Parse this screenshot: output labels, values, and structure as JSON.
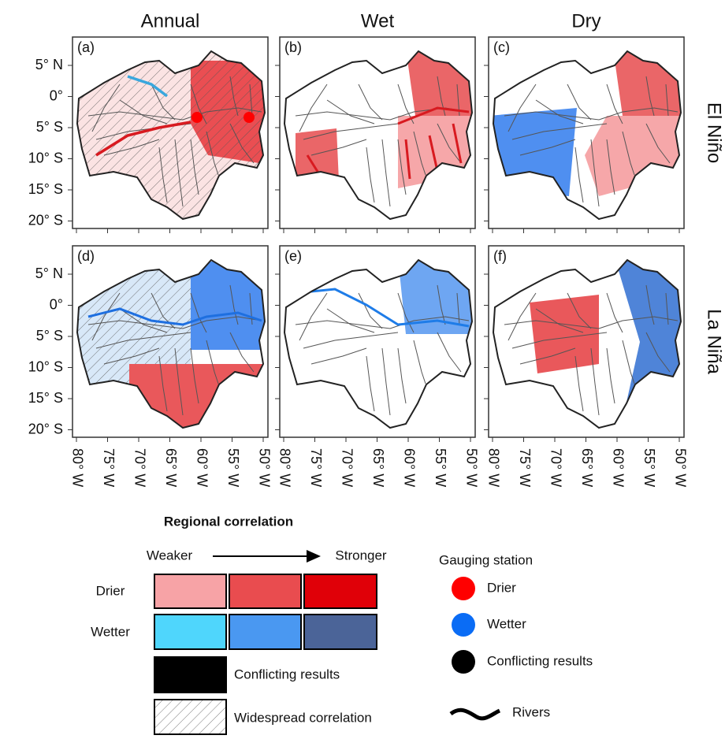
{
  "columns": [
    "Annual",
    "Wet",
    "Dry"
  ],
  "rows": [
    "El Niño",
    "La Niña"
  ],
  "panels": [
    {
      "label": "(a)"
    },
    {
      "label": "(b)"
    },
    {
      "label": "(c)"
    },
    {
      "label": "(d)"
    },
    {
      "label": "(e)"
    },
    {
      "label": "(f)"
    }
  ],
  "lat_labels": [
    "5° N",
    "0°",
    "5° S",
    "10° S",
    "15° S",
    "20° S"
  ],
  "lon_labels": [
    "80° W",
    "75° W",
    "70° W",
    "65° W",
    "60° W",
    "55° W",
    "50° W"
  ],
  "legend": {
    "title": "Regional correlation",
    "weaker": "Weaker",
    "stronger": "Stronger",
    "drier": "Drier",
    "wetter": "Wetter",
    "conflicting": "Conflicting results",
    "widespread": "Widespread correlation",
    "station_title": "Gauging station",
    "station_drier": "Drier",
    "station_wetter": "Wetter",
    "station_conflicting": "Conflicting results",
    "rivers": "Rivers"
  }
}
